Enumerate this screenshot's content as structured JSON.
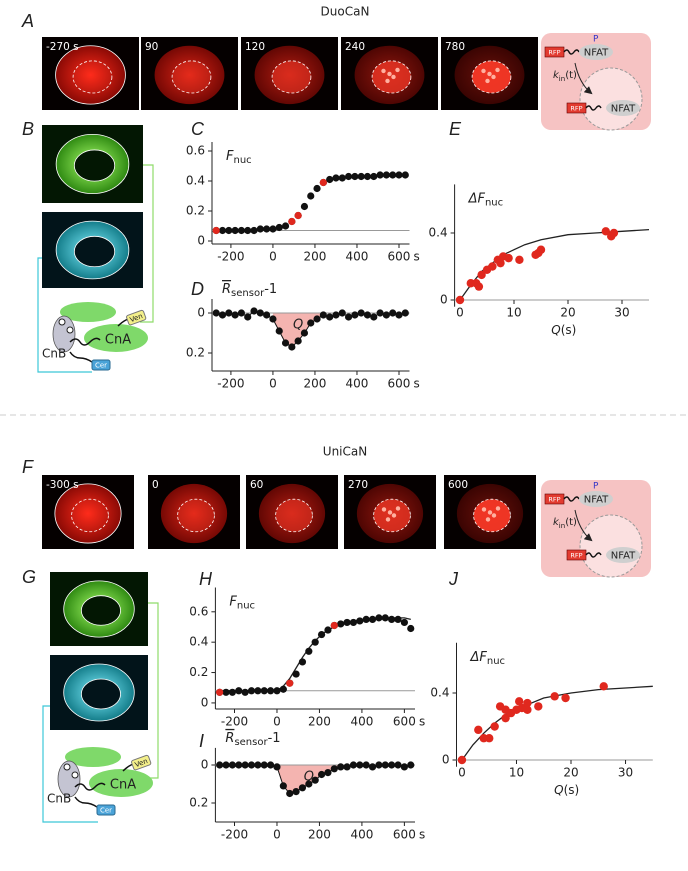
{
  "sections": [
    {
      "title": "DuoCaN",
      "image_label": "A",
      "frames": [
        "-270 s",
        "90",
        "120",
        "240",
        "780"
      ],
      "schematic": {
        "tag": "RFP",
        "phospho": "P",
        "protein": "NFAT",
        "rate": "k",
        "rate_sub": "in",
        "rate_arg": "(t)"
      },
      "sensor_label": "B",
      "sensor": {
        "cnb": "CnB",
        "cna": "CnA",
        "ven": "Ven",
        "cer": "Cer"
      }
    },
    {
      "title": "UniCaN",
      "image_label": "F",
      "frames": [
        "-300 s",
        "0",
        "60",
        "270",
        "600"
      ],
      "schematic": {
        "tag": "RFP",
        "phospho": "P",
        "protein": "NFAT",
        "rate": "k",
        "rate_sub": "in",
        "rate_arg": "(t)"
      },
      "sensor_label": "G",
      "sensor": {
        "cnb": "CnB",
        "cna": "CnA",
        "ven": "Ven",
        "cer": "Cer"
      }
    }
  ],
  "chart_data": [
    {
      "type": "scatter",
      "label": "C",
      "ylabel": "F",
      "ylabel_sub": "nuc",
      "x_unit": "s",
      "xlim": [
        -290,
        650
      ],
      "ylim": [
        -0.02,
        0.66
      ],
      "xticks": [
        -200,
        0,
        200,
        400,
        600
      ],
      "yticks": [
        0,
        0.2,
        0.4,
        0.6
      ],
      "baseline": 0.07,
      "series": [
        {
          "color": "#111111",
          "x": [
            -270,
            -240,
            -210,
            -180,
            -150,
            -120,
            -90,
            -60,
            -30,
            0,
            30,
            60,
            90,
            120,
            150,
            180,
            210,
            240,
            270,
            300,
            330,
            360,
            390,
            420,
            450,
            480,
            510,
            540,
            570,
            600,
            630
          ],
          "values": [
            0.07,
            0.07,
            0.07,
            0.07,
            0.07,
            0.07,
            0.07,
            0.08,
            0.08,
            0.08,
            0.09,
            0.1,
            0.13,
            0.17,
            0.23,
            0.3,
            0.35,
            0.39,
            0.41,
            0.42,
            0.42,
            0.43,
            0.43,
            0.43,
            0.43,
            0.43,
            0.44,
            0.44,
            0.44,
            0.44,
            0.44
          ]
        },
        {
          "color": "#e0281e",
          "x": [
            -270,
            90,
            120,
            240
          ],
          "values": [
            0.07,
            0.13,
            0.17,
            0.39
          ]
        }
      ]
    },
    {
      "type": "line",
      "label": "D",
      "ylabel": "R",
      "ylabel_sub": "sensor",
      "ylabel_tail": "-1",
      "x_unit": "s",
      "xlim": [
        -290,
        650
      ],
      "ylim": [
        -0.07,
        0.29
      ],
      "invert_y": true,
      "xticks": [
        -200,
        0,
        200,
        400,
        600
      ],
      "yticks": [
        0,
        0.2
      ],
      "zero_line": true,
      "shade": [
        0,
        240
      ],
      "shade_color": "#f4b4b0",
      "area_label": "Q",
      "series": [
        {
          "color": "#111111",
          "x": [
            -270,
            -240,
            -210,
            -180,
            -150,
            -120,
            -90,
            -60,
            -30,
            0,
            30,
            60,
            90,
            120,
            150,
            180,
            210,
            240,
            270,
            300,
            330,
            360,
            390,
            420,
            450,
            480,
            510,
            540,
            570,
            600,
            630
          ],
          "values": [
            0.0,
            0.01,
            0.0,
            0.01,
            0.0,
            0.02,
            -0.01,
            0.0,
            0.01,
            0.03,
            0.09,
            0.15,
            0.17,
            0.14,
            0.1,
            0.05,
            0.03,
            0.01,
            0.02,
            0.01,
            0.0,
            0.02,
            0.01,
            0.0,
            0.01,
            0.02,
            0.0,
            0.01,
            0.0,
            0.01,
            0.0
          ]
        }
      ]
    },
    {
      "type": "scatter",
      "label": "E",
      "ylabel": "ΔF",
      "ylabel_sub": "nuc",
      "xlabel": "Q",
      "xlabel_unit": "(s)",
      "xlim": [
        -1,
        35
      ],
      "ylim": [
        -0.04,
        0.69
      ],
      "xticks": [
        0,
        10,
        20,
        30
      ],
      "yticks": [
        0,
        0.4
      ],
      "zero_line": true,
      "fit": {
        "color": "#222222",
        "x": [
          0,
          2,
          4,
          6,
          8,
          10,
          12,
          15,
          20,
          25,
          30,
          35
        ],
        "values": [
          0,
          0.09,
          0.17,
          0.22,
          0.27,
          0.3,
          0.33,
          0.36,
          0.39,
          0.4,
          0.41,
          0.42
        ]
      },
      "series": [
        {
          "color": "#e0281e",
          "x": [
            0,
            2,
            3,
            3.5,
            4,
            5,
            6,
            7,
            7.5,
            8,
            9,
            11,
            14,
            14.5,
            15,
            27,
            28,
            28.5
          ],
          "values": [
            0,
            0.1,
            0.1,
            0.08,
            0.15,
            0.18,
            0.2,
            0.24,
            0.22,
            0.26,
            0.25,
            0.24,
            0.27,
            0.28,
            0.3,
            0.41,
            0.38,
            0.4
          ]
        }
      ]
    },
    {
      "type": "scatter",
      "label": "H",
      "ylabel": "F",
      "ylabel_sub": "nuc",
      "x_unit": "s",
      "xlim": [
        -290,
        650
      ],
      "ylim": [
        -0.04,
        0.76
      ],
      "xticks": [
        -200,
        0,
        200,
        400,
        600
      ],
      "yticks": [
        0,
        0.2,
        0.4,
        0.6
      ],
      "baseline": 0.08,
      "fit": {
        "color": "#222222",
        "x": [
          -270,
          0,
          30,
          60,
          90,
          120,
          150,
          180,
          210,
          240,
          270,
          300,
          360,
          420,
          480,
          540,
          600,
          630
        ],
        "values": [
          0.08,
          0.08,
          0.11,
          0.16,
          0.23,
          0.3,
          0.36,
          0.41,
          0.45,
          0.48,
          0.5,
          0.52,
          0.54,
          0.55,
          0.56,
          0.56,
          0.56,
          0.55
        ]
      },
      "series": [
        {
          "color": "#111111",
          "x": [
            -270,
            -240,
            -210,
            -180,
            -150,
            -120,
            -90,
            -60,
            -30,
            0,
            30,
            60,
            90,
            120,
            150,
            180,
            210,
            240,
            270,
            300,
            330,
            360,
            390,
            420,
            450,
            480,
            510,
            540,
            570,
            600,
            630
          ],
          "values": [
            0.07,
            0.07,
            0.07,
            0.08,
            0.07,
            0.08,
            0.08,
            0.08,
            0.08,
            0.08,
            0.09,
            0.13,
            0.19,
            0.27,
            0.34,
            0.4,
            0.45,
            0.48,
            0.51,
            0.52,
            0.53,
            0.53,
            0.54,
            0.55,
            0.55,
            0.56,
            0.56,
            0.55,
            0.55,
            0.53,
            0.49
          ]
        },
        {
          "color": "#e0281e",
          "x": [
            -270,
            60,
            270
          ],
          "values": [
            0.07,
            0.13,
            0.51
          ]
        }
      ]
    },
    {
      "type": "line",
      "label": "I",
      "ylabel": "R",
      "ylabel_sub": "sensor",
      "ylabel_tail": "-1",
      "x_unit": "s",
      "xlim": [
        -290,
        650
      ],
      "ylim": [
        -0.09,
        0.3
      ],
      "invert_y": true,
      "xticks": [
        -200,
        0,
        200,
        400,
        600
      ],
      "yticks": [
        0,
        0.2
      ],
      "zero_line": true,
      "shade": [
        0,
        300
      ],
      "shade_color": "#f4b4b0",
      "area_label": "Q",
      "series": [
        {
          "color": "#111111",
          "x": [
            -270,
            -240,
            -210,
            -180,
            -150,
            -120,
            -90,
            -60,
            -30,
            0,
            30,
            60,
            90,
            120,
            150,
            180,
            210,
            240,
            270,
            300,
            330,
            360,
            390,
            420,
            450,
            480,
            510,
            540,
            570,
            600,
            630
          ],
          "values": [
            0,
            0,
            0,
            0,
            0,
            0,
            0,
            0,
            0,
            0.01,
            0.11,
            0.15,
            0.14,
            0.12,
            0.1,
            0.08,
            0.05,
            0.04,
            0.02,
            0.01,
            0.01,
            0,
            0,
            0,
            0.01,
            0,
            0,
            0,
            0,
            0.01,
            0
          ]
        }
      ]
    },
    {
      "type": "scatter",
      "label": "J",
      "ylabel": "ΔF",
      "ylabel_sub": "nuc",
      "xlabel": "Q",
      "xlabel_unit": "(s)",
      "xlim": [
        -1,
        35
      ],
      "ylim": [
        -0.04,
        0.7
      ],
      "xticks": [
        0,
        10,
        20,
        30
      ],
      "yticks": [
        0,
        0.4
      ],
      "zero_line": true,
      "fit": {
        "color": "#222222",
        "x": [
          0,
          2,
          4,
          6,
          8,
          10,
          12,
          15,
          20,
          25,
          30,
          35
        ],
        "values": [
          0,
          0.09,
          0.16,
          0.22,
          0.27,
          0.3,
          0.33,
          0.37,
          0.4,
          0.42,
          0.43,
          0.44
        ]
      },
      "series": [
        {
          "color": "#e0281e",
          "x": [
            0,
            3,
            4,
            5,
            6,
            7,
            8,
            8,
            9,
            10,
            10.5,
            11,
            12,
            12,
            14,
            17,
            19,
            26
          ],
          "values": [
            0,
            0.18,
            0.13,
            0.13,
            0.2,
            0.32,
            0.25,
            0.3,
            0.28,
            0.3,
            0.35,
            0.31,
            0.3,
            0.34,
            0.32,
            0.38,
            0.37,
            0.44
          ]
        }
      ]
    }
  ]
}
